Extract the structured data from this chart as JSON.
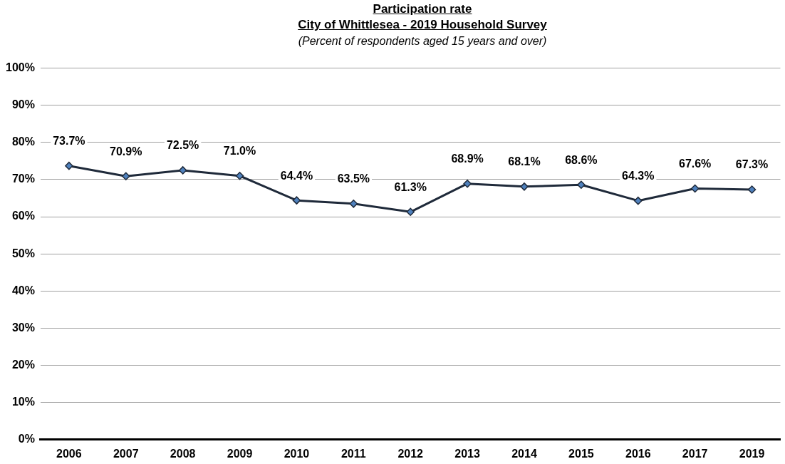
{
  "chart_data": {
    "type": "line",
    "title": "Participation rate",
    "subtitle": "City of Whittlesea - 2019 Household Survey",
    "annotations": [
      "(Percent of respondents aged 15 years and over)"
    ],
    "categories": [
      "2006",
      "2007",
      "2008",
      "2009",
      "2010",
      "2011",
      "2012",
      "2013",
      "2014",
      "2015",
      "2016",
      "2017",
      "2019"
    ],
    "series": [
      {
        "color": "#1f2a3a",
        "values": [
          73.7,
          70.9,
          72.5,
          71.0,
          64.4,
          63.5,
          61.3,
          68.9,
          68.1,
          68.6,
          64.3,
          67.6,
          67.3
        ]
      }
    ],
    "ylim": [
      0,
      100
    ],
    "yticks": [
      {
        "value": 0,
        "label": "0%"
      },
      {
        "value": 10,
        "label": "10%"
      },
      {
        "value": 20,
        "label": "20%"
      },
      {
        "value": 30,
        "label": "30%"
      },
      {
        "value": 40,
        "label": "40%"
      },
      {
        "value": 50,
        "label": "50%"
      },
      {
        "value": 60,
        "label": "60%"
      },
      {
        "value": 70,
        "label": "70%"
      },
      {
        "value": 80,
        "label": "80%"
      },
      {
        "value": 90,
        "label": "90%"
      },
      {
        "value": 100,
        "label": "100%"
      }
    ],
    "value_labels": [
      "73.7%",
      "70.9%",
      "72.5%",
      "71.0%",
      "64.4%",
      "63.5%",
      "61.3%",
      "68.9%",
      "68.1%",
      "68.6%",
      "64.3%",
      "67.6%",
      "67.3%"
    ],
    "grid": "y",
    "legend": false,
    "marker": "diamond",
    "line_style": "solid"
  }
}
